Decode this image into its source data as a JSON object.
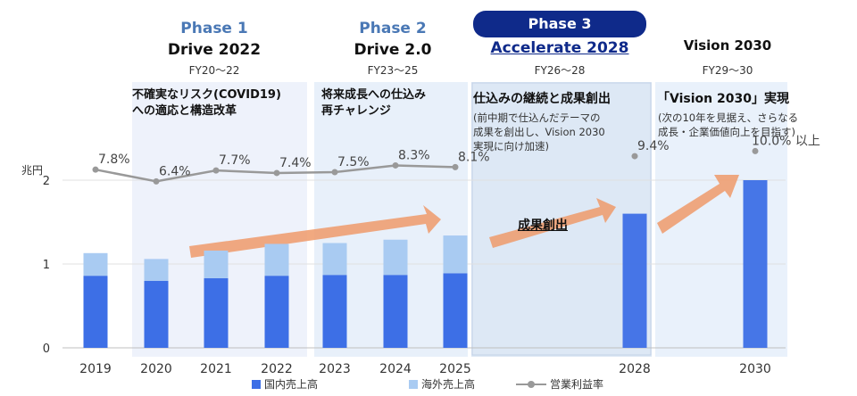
{
  "phases": [
    {
      "label": "Phase 1",
      "name": "Drive 2022",
      "fy": "FY20～22",
      "theme": "不確実なリスク(COVID19)\nへの適応と構造改革"
    },
    {
      "label": "Phase 2",
      "name": "Drive 2.0",
      "fy": "FY23～25",
      "theme": "将来成長への仕込み\n再チャレンジ"
    },
    {
      "label": "Phase 3",
      "name": "Accelerate 2028",
      "fy": "FY26～28",
      "theme": "仕込みの継続と成果創出",
      "description": "(前中期で仕込んだテーマの\n成果を創出し、Vision 2030\n実現に向け加速)"
    },
    {
      "label": "",
      "name": "Vision 2030",
      "fy": "FY29～30",
      "theme": "「Vision 2030」実現",
      "description": "(次の10年を見据え、さらなる\n成長・企業価値向上を目指す)"
    }
  ],
  "callout": "成果創出",
  "colors": {
    "domestic": "#3d6fe6",
    "overseas": "#a9cbf2",
    "margin_line": "#999999",
    "phase_label": "#4a78b5",
    "phase3_badge": "#0f2a8a",
    "arrow": "#ee9a6a"
  },
  "chart_data": {
    "type": "bar",
    "stacked": true,
    "categories": [
      "2019",
      "2020",
      "2021",
      "2022",
      "2023",
      "2024",
      "2025",
      "2028",
      "2030"
    ],
    "y_unit_label": "兆円",
    "ylim": [
      0,
      2
    ],
    "yticks": [
      0,
      1,
      2
    ],
    "series": [
      {
        "name": "国内売上高",
        "values": [
          0.86,
          0.8,
          0.83,
          0.86,
          0.87,
          0.87,
          0.89,
          1.6,
          2.0
        ]
      },
      {
        "name": "海外売上高",
        "values": [
          0.27,
          0.26,
          0.33,
          0.38,
          0.38,
          0.42,
          0.45,
          0.0,
          0.0
        ]
      }
    ],
    "line_series": {
      "name": "営業利益率",
      "values": [
        7.8,
        6.4,
        7.7,
        7.4,
        7.5,
        8.3,
        8.1,
        9.4,
        10.0
      ],
      "labels": [
        "7.8%",
        "6.4%",
        "7.7%",
        "7.4%",
        "7.5%",
        "8.3%",
        "8.1%",
        "9.4%",
        "10.0% 以上"
      ],
      "connected_through": "2025",
      "range": [
        4,
        11
      ]
    },
    "grid": true,
    "legend_position": "bottom"
  }
}
